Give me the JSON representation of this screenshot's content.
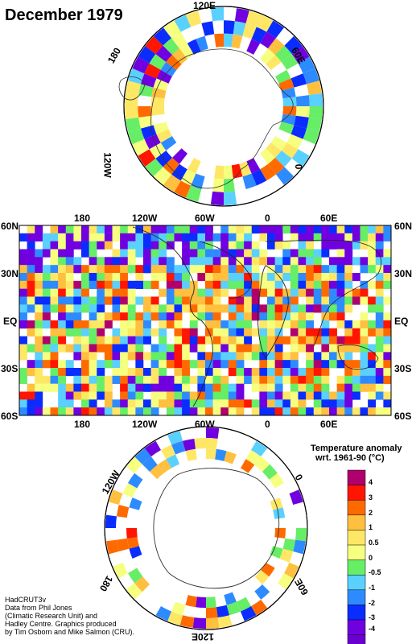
{
  "header": {
    "title": "December 1979"
  },
  "north_map": {
    "labels": {
      "top": "120E",
      "upper_left": "180",
      "upper_right": "60E",
      "lower_left": "120W",
      "lower_right": "0"
    }
  },
  "world_map": {
    "lon_labels": [
      "180",
      "120W",
      "60W",
      "0",
      "60E"
    ],
    "lat_labels": [
      "60N",
      "30N",
      "EQ",
      "30S",
      "60S"
    ]
  },
  "south_map": {
    "labels": {
      "upper_left": "120W",
      "upper_right": "0",
      "lower_left": "180",
      "lower_right": "60E",
      "bottom": "120E"
    }
  },
  "legend": {
    "title_line1": "Temperature anomaly",
    "title_line2": "wrt. 1961-90  (°C)",
    "bins": [
      {
        "label": "4",
        "color": "#b0006e"
      },
      {
        "label": "3",
        "color": "#ff1500"
      },
      {
        "label": "2",
        "color": "#ff6a00"
      },
      {
        "label": "1",
        "color": "#ffbf3f"
      },
      {
        "label": "0.5",
        "color": "#ffe766"
      },
      {
        "label": "0",
        "color": "#f6ff7f"
      },
      {
        "label": "-0.5",
        "color": "#66ee66"
      },
      {
        "label": "-1",
        "color": "#5ad0ff"
      },
      {
        "label": "-2",
        "color": "#2e8bff"
      },
      {
        "label": "-3",
        "color": "#0a2cff"
      },
      {
        "label": "-4",
        "color": "#7000e0"
      },
      {
        "label": "",
        "color": "#6a00d0"
      }
    ]
  },
  "credits": {
    "line1": "HadCRUT3v",
    "line2": "Data from Phil Jones",
    "line3": "(Climatic Research Unit) and",
    "line4": "Hadley Centre.  Graphics produced",
    "line5": "by Tim Osborn and Mike Salmon (CRU)."
  }
}
